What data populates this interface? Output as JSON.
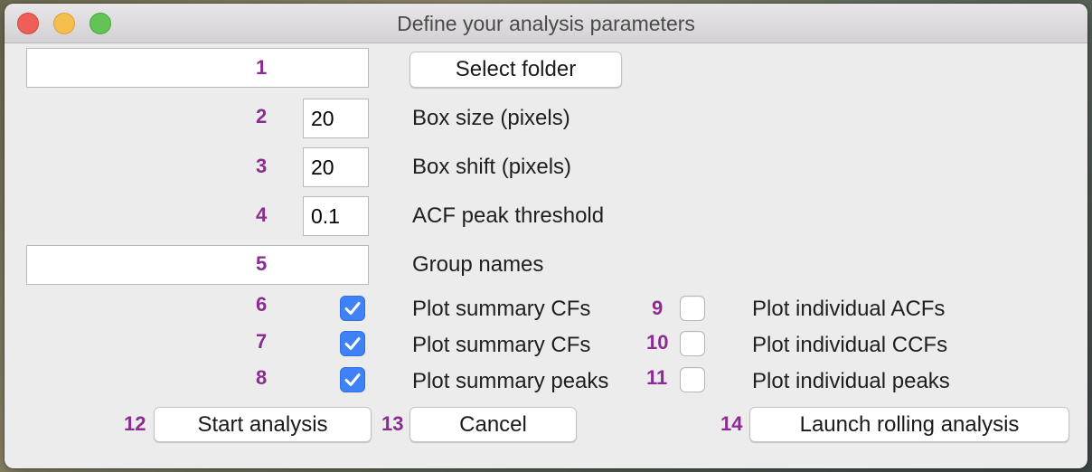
{
  "window": {
    "title": "Define your analysis parameters"
  },
  "folder": {
    "path_value": "",
    "button_label": "Select folder"
  },
  "params": [
    {
      "value": "20",
      "label": "Box size (pixels)"
    },
    {
      "value": "20",
      "label": "Box shift (pixels)"
    },
    {
      "value": "0.1",
      "label": "ACF peak threshold"
    }
  ],
  "group_names": {
    "value": "",
    "label": "Group names"
  },
  "checkboxes_left": [
    {
      "label": "Plot summary CFs",
      "checked": true
    },
    {
      "label": "Plot summary CFs",
      "checked": true
    },
    {
      "label": "Plot summary peaks",
      "checked": true
    }
  ],
  "checkboxes_right": [
    {
      "label": "Plot individual ACFs",
      "checked": false
    },
    {
      "label": "Plot individual CCFs",
      "checked": false
    },
    {
      "label": "Plot individual peaks",
      "checked": false
    }
  ],
  "buttons": {
    "start": "Start analysis",
    "cancel": "Cancel",
    "rolling": "Launch rolling analysis"
  },
  "annotations": [
    "1",
    "2",
    "3",
    "4",
    "5",
    "6",
    "7",
    "8",
    "9",
    "10",
    "11",
    "12",
    "13",
    "14"
  ],
  "colors": {
    "annotation": "#8b2c92",
    "checkbox_checked": "#3f82f5",
    "window_bg": "#ececec"
  }
}
